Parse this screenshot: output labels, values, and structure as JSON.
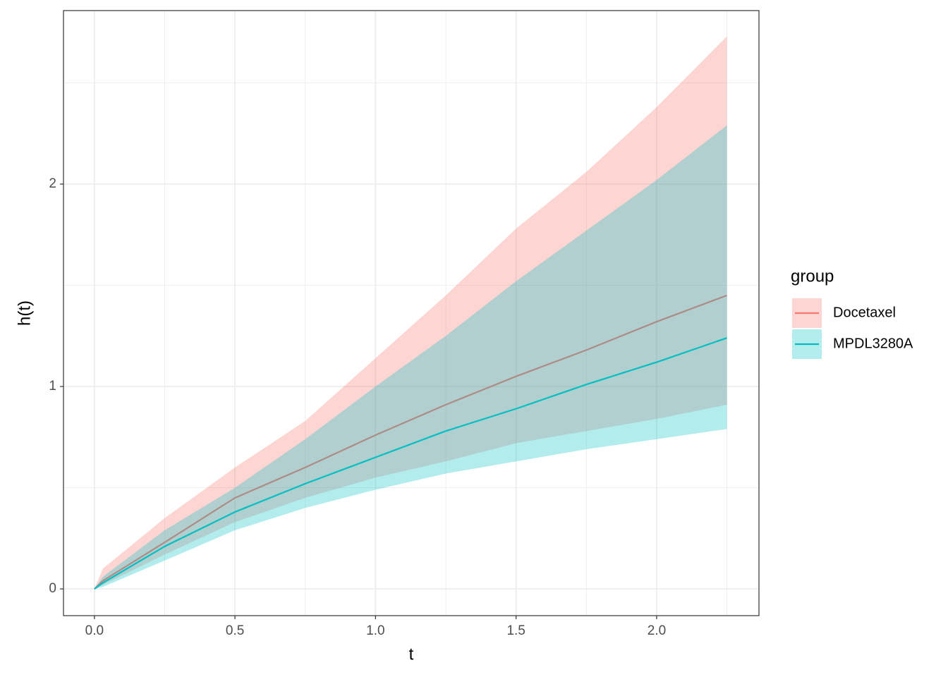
{
  "chart_data": {
    "type": "line",
    "x_label": "t",
    "y_label": "h(t)",
    "x": [
      0,
      0.03,
      0.25,
      0.5,
      0.75,
      1.0,
      1.25,
      1.5,
      1.75,
      2.0,
      2.25
    ],
    "series": [
      {
        "name": "Docetaxel",
        "color": "#F8766D",
        "values": [
          0,
          0.04,
          0.23,
          0.45,
          0.6,
          0.76,
          0.91,
          1.05,
          1.18,
          1.32,
          1.45
        ],
        "lower": [
          0,
          0.02,
          0.17,
          0.33,
          0.45,
          0.55,
          0.63,
          0.72,
          0.78,
          0.84,
          0.91
        ],
        "upper": [
          0,
          0.1,
          0.35,
          0.6,
          0.83,
          1.14,
          1.45,
          1.78,
          2.06,
          2.38,
          2.73
        ]
      },
      {
        "name": "MPDL3280A",
        "color": "#00BFC4",
        "values": [
          0,
          0.03,
          0.21,
          0.38,
          0.52,
          0.65,
          0.78,
          0.89,
          1.01,
          1.12,
          1.24
        ],
        "lower": [
          0,
          0.01,
          0.14,
          0.29,
          0.4,
          0.49,
          0.57,
          0.63,
          0.69,
          0.74,
          0.79
        ],
        "upper": [
          0,
          0.06,
          0.29,
          0.5,
          0.74,
          1.0,
          1.25,
          1.52,
          1.77,
          2.02,
          2.29
        ]
      }
    ],
    "ribbon_alpha": 0.3,
    "xlim": [
      -0.11,
      2.364
    ],
    "ylim": [
      -0.132,
      2.857
    ],
    "xticks": [
      {
        "value": 0,
        "label": "0.0"
      },
      0.5,
      {
        "value": 1,
        "label": "1.0"
      },
      1.5,
      {
        "value": 2,
        "label": "2.0"
      }
    ],
    "yticks": [
      0,
      1,
      2
    ],
    "x_minor_grid": [
      0.25,
      0.75,
      1.25,
      1.75,
      2.25
    ],
    "y_minor_grid": [
      0.5,
      1.5,
      2.5
    ],
    "grid": true,
    "legend_title": "group",
    "legend_position": "right"
  }
}
